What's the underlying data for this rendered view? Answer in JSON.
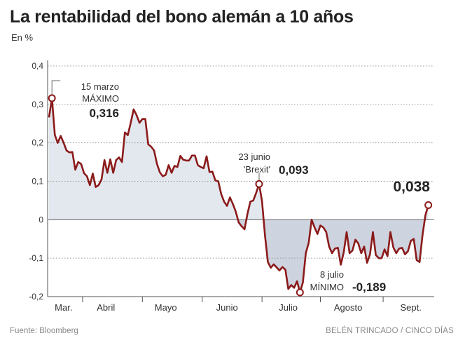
{
  "title": "La rentabilidad del bono alemán a 10 años",
  "subtitle": "En %",
  "source": "Fuente: Bloomberg",
  "credit": "BELÉN TRINCADO / CINCO DÍAS",
  "colors": {
    "line": "#8b1a1a",
    "fill_above": "#e3e8ef",
    "fill_below": "#cdd3df",
    "grid": "#999999"
  },
  "chart_data": {
    "type": "area",
    "title": "La rentabilidad del bono alemán a 10 años",
    "ylabel": "En %",
    "ylim": [
      -0.2,
      0.4
    ],
    "yticks": [
      0.4,
      0.3,
      0.2,
      0.1,
      0,
      -0.1,
      -0.2
    ],
    "ytick_labels": [
      "0,4",
      "0,3",
      "0,2",
      "0,1",
      "0",
      "-0,1",
      "-0,2"
    ],
    "xlim": [
      0,
      132
    ],
    "months": [
      "Mar.",
      "Abril",
      "Mayo",
      "Junio",
      "Julio",
      "Agosto",
      "Sept."
    ],
    "month_label_x": [
      5,
      19.5,
      40,
      61,
      82,
      102.5,
      124
    ],
    "month_separators": [
      11.5,
      32,
      52.5,
      73,
      93,
      114.5
    ],
    "x": [
      0,
      1,
      2,
      3,
      4,
      5,
      6,
      7,
      8,
      9,
      10,
      11,
      12,
      13,
      14,
      15,
      16,
      17,
      18,
      19,
      20,
      21,
      22,
      23,
      24,
      25,
      26,
      27,
      28,
      29,
      30,
      31,
      32,
      33,
      34,
      35,
      36,
      37,
      38,
      39,
      40,
      41,
      42,
      43,
      44,
      45,
      46,
      47,
      48,
      49,
      50,
      51,
      52,
      53,
      54,
      55,
      56,
      57,
      58,
      59,
      60,
      61,
      62,
      63,
      64,
      65,
      66,
      67,
      68,
      69,
      70,
      71,
      72,
      73,
      74,
      75,
      76,
      77,
      78,
      79,
      80,
      81,
      82,
      83,
      84,
      85,
      86,
      87,
      88,
      89,
      90,
      91,
      92,
      93,
      94,
      95,
      96,
      97,
      98,
      99,
      100,
      101,
      102,
      103,
      104,
      105,
      106,
      107,
      108,
      109,
      110,
      111,
      112,
      113,
      114,
      115,
      116,
      117,
      118,
      119,
      120,
      121,
      122,
      123,
      124,
      125,
      126,
      127,
      128,
      129,
      130
    ],
    "values": [
      0.266,
      0.316,
      0.22,
      0.2,
      0.218,
      0.2,
      0.18,
      0.175,
      0.176,
      0.13,
      0.15,
      0.145,
      0.121,
      0.113,
      0.09,
      0.12,
      0.085,
      0.09,
      0.105,
      0.155,
      0.122,
      0.157,
      0.122,
      0.155,
      0.162,
      0.15,
      0.227,
      0.22,
      0.252,
      0.287,
      0.272,
      0.252,
      0.262,
      0.262,
      0.196,
      0.19,
      0.18,
      0.145,
      0.123,
      0.113,
      0.117,
      0.142,
      0.122,
      0.14,
      0.137,
      0.166,
      0.156,
      0.154,
      0.154,
      0.167,
      0.167,
      0.142,
      0.137,
      0.134,
      0.165,
      0.124,
      0.125,
      0.102,
      0.1,
      0.067,
      0.047,
      0.036,
      0.058,
      0.041,
      0.021,
      -0.007,
      -0.017,
      -0.025,
      0.015,
      0.047,
      0.05,
      0.07,
      0.093,
      0.048,
      -0.04,
      -0.11,
      -0.125,
      -0.116,
      -0.124,
      -0.132,
      -0.123,
      -0.13,
      -0.18,
      -0.17,
      -0.177,
      -0.16,
      -0.189,
      -0.163,
      -0.087,
      -0.06,
      0.0,
      -0.02,
      -0.037,
      -0.015,
      -0.02,
      -0.032,
      -0.07,
      -0.087,
      -0.075,
      -0.073,
      -0.117,
      -0.085,
      -0.032,
      -0.087,
      -0.08,
      -0.052,
      -0.062,
      -0.087,
      -0.07,
      -0.112,
      -0.09,
      -0.032,
      -0.092,
      -0.1,
      -0.1,
      -0.077,
      -0.095,
      -0.032,
      -0.072,
      -0.087,
      -0.075,
      -0.073,
      -0.09,
      -0.082,
      -0.055,
      -0.05,
      -0.105,
      -0.11,
      -0.04,
      0.012,
      0.038
    ],
    "annotations": [
      {
        "date": "15 marzo",
        "label": "MÁXIMO",
        "value_text": "0,316",
        "x": 1,
        "y": 0.316
      },
      {
        "date": "23 junio",
        "label": "'Brexit'",
        "value_text": "0,093",
        "x": 72,
        "y": 0.093
      },
      {
        "date": "8 julio",
        "label": "MÍNIMO",
        "value_text": "-0,189",
        "x": 86,
        "y": -0.189
      },
      {
        "value_text": "0,038",
        "x": 130,
        "y": 0.038
      }
    ]
  }
}
